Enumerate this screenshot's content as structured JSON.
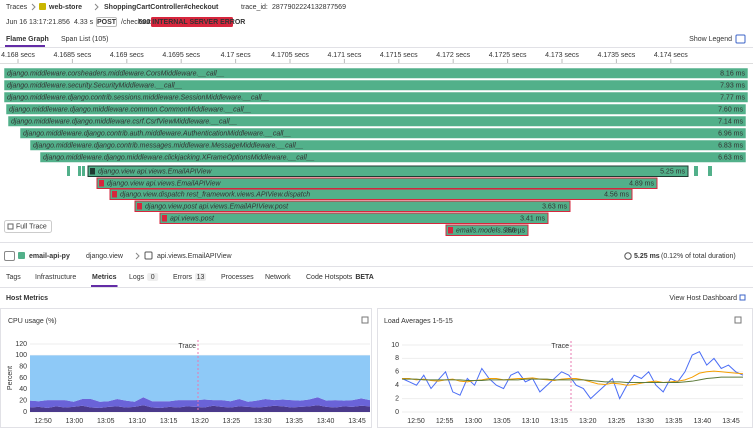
{
  "breadcrumb": {
    "root": "Traces",
    "service": "web-store",
    "resource": "ShoppingCartController#checkout",
    "trace_id_label": "trace_id:",
    "trace_id": "2877902224132877569"
  },
  "summary": {
    "timestamp": "Jun 16 13:17:21.856",
    "duration": "4.33 s",
    "method": "POST",
    "path": "/checkout",
    "status": "500 INTERNAL SERVER ERROR"
  },
  "tabs": [
    "Flame Graph",
    "Span List (105)"
  ],
  "show_legend": "Show Legend",
  "timeline_ticks": [
    "4.168 secs",
    "4.1685 secs",
    "4.169 secs",
    "4.1695 secs",
    "4.17 secs",
    "4.1705 secs",
    "4.171 secs",
    "4.1715 secs",
    "4.172 secs",
    "4.1725 secs",
    "4.173 secs",
    "4.1735 secs",
    "4.174 secs"
  ],
  "spans": [
    {
      "label": "django.middleware.corsheaders.middleware.CorsMiddleware.__call__",
      "duration": "8.16 ms"
    },
    {
      "label": "django.middleware.security.SecurityMiddleware.__call__",
      "duration": "7.93 ms"
    },
    {
      "label": "django.middleware.django.contrib.sessions.middleware.SessionMiddleware.__call__",
      "duration": "7.77 ms"
    },
    {
      "label": "django.middleware.django.middleware.common.CommonMiddleware.__call__",
      "duration": "7.60 ms"
    },
    {
      "label": "django.middleware.django.middleware.csrf.CsrfViewMiddleware.__call__",
      "duration": "7.14 ms"
    },
    {
      "label": "django.middleware.django.contrib.auth.middleware.AuthenticationMiddleware.__call__",
      "duration": "6.96 ms"
    },
    {
      "label": "django.middleware.django.contrib.messages.middleware.MessageMiddleware.__call__",
      "duration": "6.83 ms"
    },
    {
      "label": "django.middleware.django.middleware.clickjacking.XFrameOptionsMiddleware.__call__",
      "duration": "6.63 ms"
    },
    {
      "label": "django.view api.views.EmailAPIView",
      "duration": "5.25 ms"
    },
    {
      "label": "django.view api.views.EmailAPIView",
      "duration": "4.89 ms",
      "error": true
    },
    {
      "label": "django.view.dispatch rest_framework.views.APIView.dispatch",
      "duration": "4.56 ms",
      "error": true
    },
    {
      "label": "django.view.post api.views.EmailAPIView.post",
      "duration": "3.63 ms",
      "error": true
    },
    {
      "label": "api.views.post",
      "duration": "3.41 ms",
      "error": true
    },
    {
      "label": "emails.models.save",
      "duration": "750 µs",
      "error": true
    }
  ],
  "full_trace": "Full Trace",
  "span_detail": {
    "service": "email-api-py",
    "operation": "django.view",
    "resource": "api.views.EmailAPIView",
    "duration": "5.25 ms",
    "share": "(0.12% of total duration)"
  },
  "detail_tabs": [
    {
      "label": "Tags"
    },
    {
      "label": "Infrastructure"
    },
    {
      "label": "Metrics"
    },
    {
      "label": "Logs",
      "count": 0
    },
    {
      "label": "Errors",
      "count": 13
    },
    {
      "label": "Processes"
    },
    {
      "label": "Network"
    },
    {
      "label": "Code Hotspots",
      "badge": "BETA"
    }
  ],
  "section_title": "Host Metrics",
  "dashboard_link": "View Host Dashboard",
  "charts": [
    {
      "type": "stacked_area",
      "title": "CPU usage (%)",
      "y_label": "Percent",
      "ylim": [
        0,
        120
      ],
      "yticks": [
        0,
        20,
        40,
        60,
        80,
        100,
        120
      ],
      "grid": true,
      "marker_label": "Trace",
      "xtick_labels": [
        "12:50",
        "13:00",
        "13:05",
        "13:10",
        "13:15",
        "13:20",
        "13:25",
        "13:30",
        "13:35",
        "13:40",
        "13:45"
      ],
      "series": [
        {
          "color": "#4b3a8c",
          "values": [
            8,
            9,
            7,
            10,
            8,
            9,
            11,
            8,
            7,
            9,
            10,
            8,
            9,
            12,
            8,
            7,
            9,
            8,
            10,
            9,
            8,
            11,
            9,
            8,
            10,
            9,
            8,
            9,
            11,
            10,
            8,
            9,
            10,
            12,
            9,
            8,
            10,
            9,
            11,
            10
          ]
        },
        {
          "color": "#6a63d8",
          "values": [
            12,
            10,
            14,
            11,
            13,
            9,
            12,
            15,
            11,
            10,
            13,
            12,
            9,
            14,
            11,
            12,
            10,
            13,
            11,
            12,
            14,
            10,
            12,
            11,
            13,
            9,
            12,
            14,
            10,
            12,
            13,
            11,
            12,
            14,
            11,
            13,
            10,
            12,
            13,
            11
          ]
        },
        {
          "color": "#8ec9f7",
          "values": [
            80,
            81,
            79,
            79,
            79,
            82,
            77,
            77,
            82,
            81,
            77,
            80,
            82,
            74,
            81,
            81,
            81,
            79,
            79,
            79,
            78,
            79,
            79,
            81,
            77,
            82,
            80,
            77,
            79,
            78,
            79,
            80,
            78,
            74,
            80,
            79,
            80,
            79,
            76,
            79
          ]
        }
      ]
    },
    {
      "type": "line",
      "title": "Load Averages 1-5-15",
      "ylim": [
        0,
        10
      ],
      "yticks": [
        0,
        2,
        4,
        6,
        8,
        10
      ],
      "grid": true,
      "marker_label": "Trace",
      "xtick_labels": [
        "12:50",
        "12:55",
        "13:00",
        "13:05",
        "13:10",
        "13:15",
        "13:20",
        "13:25",
        "13:30",
        "13:35",
        "13:40",
        "13:45"
      ],
      "series": [
        {
          "color": "#4c6ef5",
          "values": [
            5,
            4.5,
            4,
            5.5,
            3.5,
            4.8,
            6,
            3,
            2.5,
            5,
            4,
            6.5,
            5,
            4,
            3.5,
            5.5,
            6,
            4.5,
            5,
            3,
            4,
            5,
            6,
            5.5,
            4,
            3.5,
            2,
            3,
            4,
            5,
            2,
            4,
            5.5,
            5,
            6,
            4,
            3,
            5,
            4.5,
            6,
            8.5,
            9,
            7,
            8,
            6.5,
            7,
            6,
            5.5
          ]
        },
        {
          "color": "#f59f00",
          "values": [
            5,
            5,
            4.8,
            4.9,
            4.7,
            4.6,
            4.8,
            4.9,
            4.6,
            4.5,
            4.7,
            4.8,
            5,
            5,
            4.8,
            4.9,
            5,
            5,
            5.1,
            4.9,
            4.8,
            4.7,
            4.9,
            5,
            5,
            4.8,
            4.5,
            4.2,
            4.1,
            4.3,
            4.2,
            4,
            4.1,
            4.3,
            4.5,
            4.6,
            4.4,
            4.5,
            4.6,
            4.8,
            5.2,
            5.8,
            6,
            6.1,
            6,
            5.9,
            5.8,
            5.7
          ]
        },
        {
          "color": "#5c7a3a",
          "values": [
            4.9,
            4.9,
            4.9,
            4.8,
            4.8,
            4.8,
            4.8,
            4.8,
            4.8,
            4.7,
            4.7,
            4.7,
            4.8,
            4.8,
            4.8,
            4.8,
            4.8,
            4.9,
            4.9,
            4.9,
            4.9,
            4.8,
            4.8,
            4.8,
            4.8,
            4.8,
            4.7,
            4.6,
            4.5,
            4.5,
            4.5,
            4.4,
            4.4,
            4.4,
            4.4,
            4.4,
            4.4,
            4.4,
            4.4,
            4.5,
            4.6,
            4.8,
            5,
            5.1,
            5.2,
            5.2,
            5.2,
            5.2
          ]
        }
      ]
    }
  ]
}
